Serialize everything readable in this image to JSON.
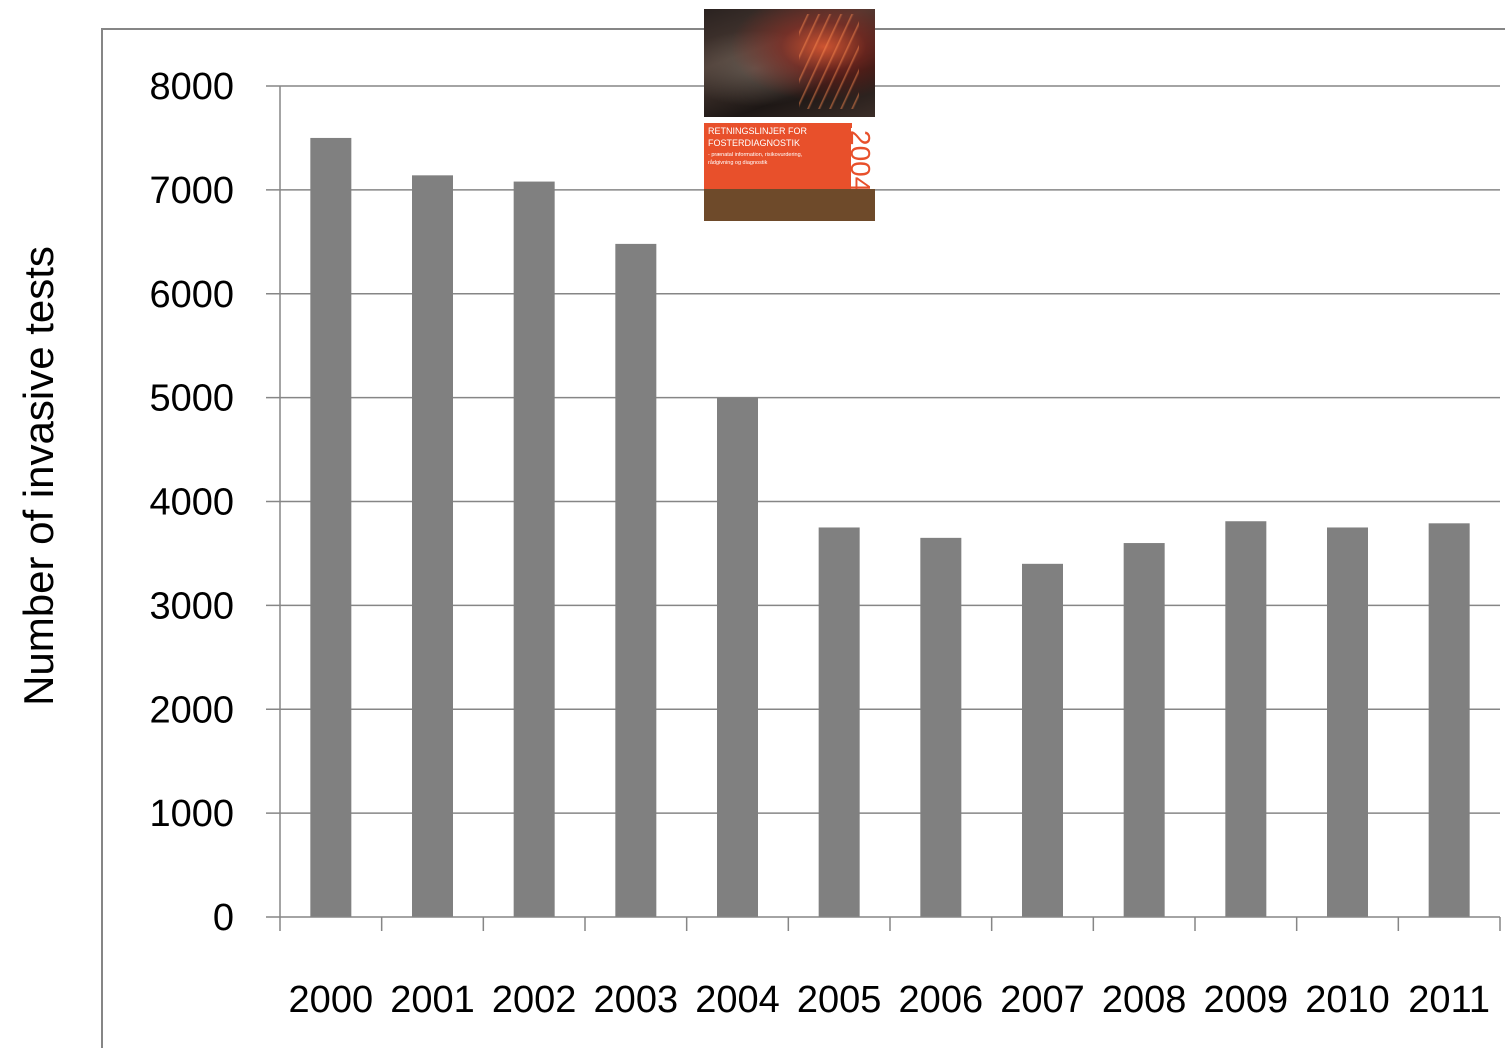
{
  "chart_data": {
    "type": "bar",
    "categories": [
      "2000",
      "2001",
      "2002",
      "2003",
      "2004",
      "2005",
      "2006",
      "2007",
      "2008",
      "2009",
      "2010",
      "2011"
    ],
    "values": [
      7500,
      7140,
      7080,
      6480,
      5000,
      3750,
      3650,
      3400,
      3600,
      3810,
      3750,
      3790
    ],
    "title": "",
    "xlabel": "",
    "ylabel": "Number of invasive tests",
    "ylim": [
      0,
      8000
    ],
    "yticks": [
      0,
      1000,
      2000,
      3000,
      4000,
      5000,
      6000,
      7000,
      8000
    ],
    "grid": true,
    "legend": "none",
    "colors": {
      "bar": "#808080",
      "gridline": "#868686",
      "axis": "#868686",
      "frame": "#868686"
    }
  },
  "cover": {
    "title_line_1": "RETNINGSLINJER FOR",
    "title_line_2": "FOSTERDIAGNOSTIK",
    "subtitle_line_1": "- prænatal information, risikovurdering,",
    "subtitle_line_2": "rådgivning og diagnostik",
    "year": "2004",
    "colors": {
      "panel": "#e8502b",
      "bottom": "#6e4a2a"
    }
  }
}
